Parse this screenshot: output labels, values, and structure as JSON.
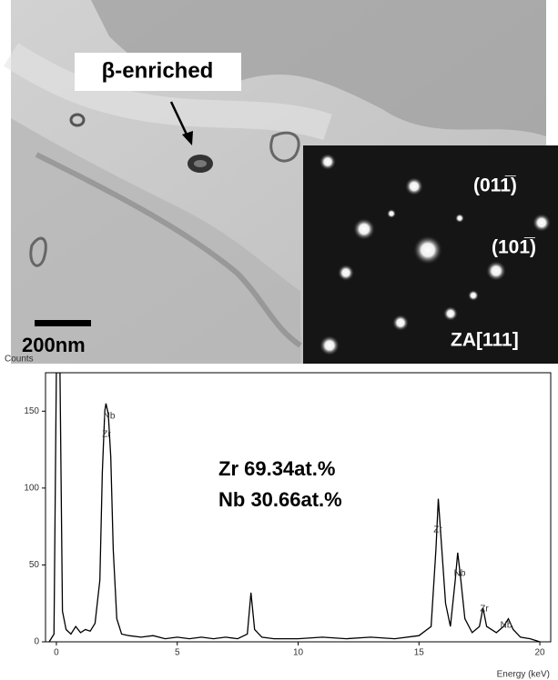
{
  "micrograph": {
    "label": "β-enriched",
    "scale_bar": "200nm",
    "diffraction_labels": [
      "(011̅)",
      "(101̅)",
      "ZA[111]"
    ]
  },
  "chart_data": {
    "type": "line",
    "ylabel": "Counts",
    "xlabel": "Energy (keV)",
    "color": "#000000",
    "x": [
      -0.3,
      -0.1,
      0,
      0.05,
      0.15,
      0.25,
      0.4,
      0.6,
      0.8,
      1.0,
      1.2,
      1.4,
      1.6,
      1.8,
      1.9,
      2.0,
      2.05,
      2.15,
      2.25,
      2.35,
      2.5,
      2.7,
      3.0,
      3.5,
      4,
      4.5,
      5,
      5.5,
      6,
      6.5,
      7,
      7.5,
      7.9,
      8.05,
      8.2,
      8.5,
      9,
      10,
      11,
      12,
      13,
      14,
      15,
      15.5,
      15.7,
      15.8,
      15.9,
      16.1,
      16.3,
      16.5,
      16.6,
      16.7,
      16.9,
      17.2,
      17.5,
      17.65,
      17.8,
      18.2,
      18.5,
      18.7,
      18.9,
      19.2,
      19.6,
      20
    ],
    "values": [
      0,
      5,
      175,
      175,
      175,
      20,
      8,
      5,
      10,
      6,
      8,
      7,
      12,
      40,
      110,
      150,
      155,
      148,
      120,
      60,
      15,
      5,
      4,
      3,
      4,
      2,
      3,
      2,
      3,
      2,
      3,
      2,
      5,
      32,
      8,
      3,
      2,
      2,
      3,
      2,
      3,
      2,
      4,
      10,
      60,
      93,
      70,
      25,
      10,
      40,
      58,
      45,
      15,
      6,
      10,
      22,
      10,
      6,
      10,
      15,
      8,
      3,
      2,
      0
    ],
    "xlim": [
      -0.45,
      20.45
    ],
    "ylim": [
      0,
      175
    ],
    "xticks": [
      0,
      5,
      10,
      15,
      20
    ],
    "yticks": [
      0,
      50,
      100,
      150
    ],
    "annotations": [
      "Nb",
      "Zr",
      "Zr",
      "Nb",
      "Zr",
      "Nb"
    ],
    "composition": [
      "Zr 69.34at.%",
      "Nb 30.66at.%"
    ]
  }
}
